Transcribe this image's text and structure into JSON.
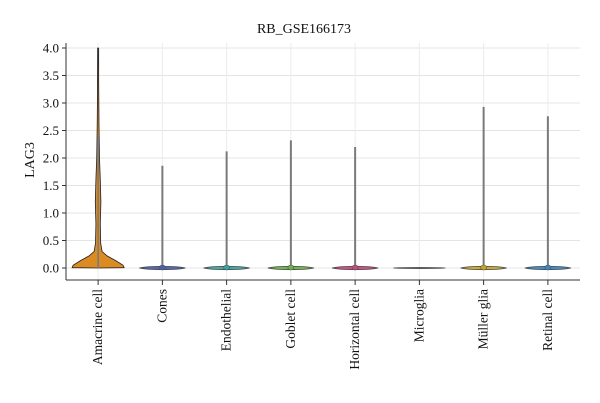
{
  "chart_data": {
    "type": "violin",
    "title": "RB_GSE166173",
    "xlabel": "",
    "ylabel": "LAG3",
    "ylim": [
      -0.1,
      4.1
    ],
    "yticks": [
      "0.0",
      "0.5",
      "1.0",
      "1.5",
      "2.0",
      "2.5",
      "3.0",
      "3.5",
      "4.0"
    ],
    "grid": true,
    "categories": [
      "Amacrine cell",
      "Cones",
      "Endothelial",
      "Goblet cell",
      "Horizontal cell",
      "Microglia",
      "Müller glia",
      "Retinal cell"
    ],
    "series": [
      {
        "category": "Amacrine cell",
        "max": 4.0,
        "color": "#dc8a22"
      },
      {
        "category": "Cones",
        "max": 1.86,
        "color": "#4b5fb0"
      },
      {
        "category": "Endothelial",
        "max": 2.12,
        "color": "#3aa5a0"
      },
      {
        "category": "Goblet cell",
        "max": 2.32,
        "color": "#6fb04a"
      },
      {
        "category": "Horizontal cell",
        "max": 2.2,
        "color": "#c9477d"
      },
      {
        "category": "Microglia",
        "max": 0.0,
        "color": "#8c8c8c"
      },
      {
        "category": "Müller glia",
        "max": 2.93,
        "color": "#c9a526"
      },
      {
        "category": "Retinal cell",
        "max": 2.76,
        "color": "#3c86c6"
      }
    ]
  }
}
